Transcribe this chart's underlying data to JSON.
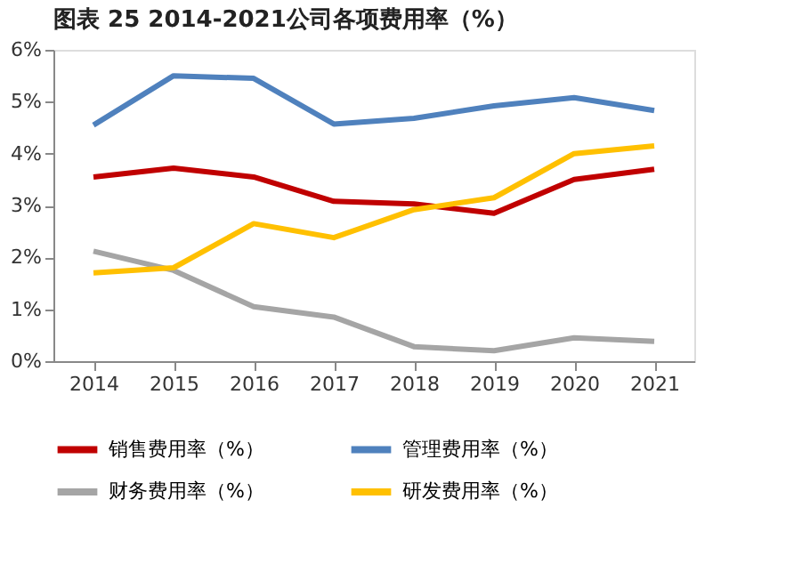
{
  "chart_data": {
    "type": "line",
    "title": "图表 25 2014-2021公司各项费用率（%）",
    "categories": [
      "2014",
      "2015",
      "2016",
      "2017",
      "2018",
      "2019",
      "2020",
      "2021"
    ],
    "series": [
      {
        "name": "销售费用率（%）",
        "color": "#c00000",
        "values": [
          3.55,
          3.72,
          3.55,
          3.08,
          3.03,
          2.85,
          3.5,
          3.7
        ]
      },
      {
        "name": "管理费用率（%）",
        "color": "#4f81bd",
        "values": [
          4.55,
          5.5,
          5.45,
          4.57,
          4.68,
          4.92,
          5.08,
          4.83
        ]
      },
      {
        "name": "财务费用率（%）",
        "color": "#a5a5a5",
        "values": [
          2.12,
          1.75,
          1.05,
          0.85,
          0.28,
          0.2,
          0.45,
          0.38
        ]
      },
      {
        "name": "研发费用率（%）",
        "color": "#ffc000",
        "values": [
          1.7,
          1.8,
          2.65,
          2.38,
          2.92,
          3.15,
          4.0,
          4.15
        ]
      }
    ],
    "ylim": [
      0,
      6
    ],
    "yticks": [
      {
        "value": 0,
        "label": "0%"
      },
      {
        "value": 1,
        "label": "1%"
      },
      {
        "value": 2,
        "label": "2%"
      },
      {
        "value": 3,
        "label": "3%"
      },
      {
        "value": 4,
        "label": "4%"
      },
      {
        "value": 5,
        "label": "5%"
      },
      {
        "value": 6,
        "label": "6%"
      }
    ],
    "grid": false,
    "legend": "bottom",
    "marker": "none",
    "line_style": "solid"
  }
}
